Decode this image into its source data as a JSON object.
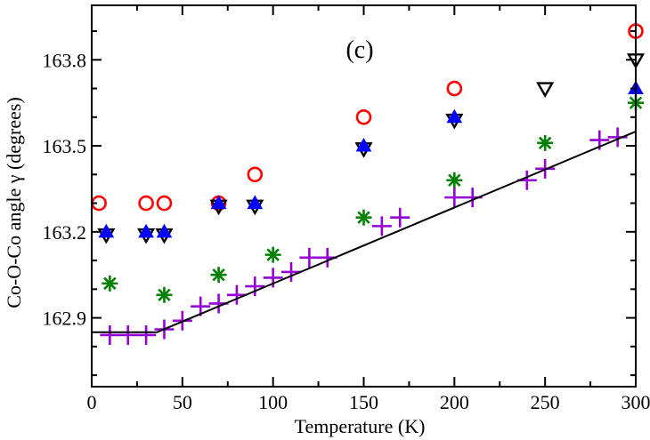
{
  "chart_data": {
    "type": "scatter",
    "title": "",
    "panel_label": "(c)",
    "xlabel": "Temperature (K)",
    "ylabel": "Co-O-Co angle γ (degrees)",
    "xlim": [
      0,
      300
    ],
    "ylim": [
      162.66,
      163.99
    ],
    "x_ticks": [
      0,
      50,
      100,
      150,
      200,
      250,
      300
    ],
    "y_ticks": [
      162.9,
      163.2,
      163.5,
      163.8
    ],
    "y_tick_labels": [
      "162.9",
      "163.2",
      "163.5",
      "163.8"
    ],
    "grid": false,
    "legend": "none",
    "series": [
      {
        "marker": "open-circle",
        "color": "#ff0000",
        "points": [
          [
            4,
            163.3
          ],
          [
            30,
            163.3
          ],
          [
            40,
            163.3
          ],
          [
            70,
            163.3
          ],
          [
            90,
            163.4
          ],
          [
            150,
            163.6
          ],
          [
            200,
            163.7
          ],
          [
            300,
            163.9
          ]
        ]
      },
      {
        "marker": "open-down-triangle",
        "color": "#000000",
        "points": [
          [
            8,
            163.19
          ],
          [
            30,
            163.19
          ],
          [
            40,
            163.19
          ],
          [
            70,
            163.29
          ],
          [
            90,
            163.29
          ],
          [
            150,
            163.49
          ],
          [
            200,
            163.59
          ],
          [
            250,
            163.7
          ],
          [
            300,
            163.8
          ]
        ]
      },
      {
        "marker": "filled-up-triangle",
        "color": "#0000ff",
        "points": [
          [
            8,
            163.2
          ],
          [
            30,
            163.2
          ],
          [
            40,
            163.2
          ],
          [
            70,
            163.3
          ],
          [
            90,
            163.3
          ],
          [
            150,
            163.5
          ],
          [
            200,
            163.6
          ],
          [
            300,
            163.7
          ]
        ]
      },
      {
        "marker": "asterisk",
        "color": "#008000",
        "points": [
          [
            10,
            163.02
          ],
          [
            40,
            162.98
          ],
          [
            70,
            163.05
          ],
          [
            100,
            163.12
          ],
          [
            150,
            163.25
          ],
          [
            200,
            163.38
          ],
          [
            250,
            163.51
          ],
          [
            300,
            163.65
          ]
        ]
      },
      {
        "marker": "plus",
        "color": "#9400d3",
        "points": [
          [
            10,
            162.84
          ],
          [
            20,
            162.84
          ],
          [
            30,
            162.84
          ],
          [
            40,
            162.86
          ],
          [
            50,
            162.89
          ],
          [
            60,
            162.94
          ],
          [
            70,
            162.95
          ],
          [
            80,
            162.98
          ],
          [
            90,
            163.01
          ],
          [
            100,
            163.04
          ],
          [
            110,
            163.06
          ],
          [
            120,
            163.11
          ],
          [
            130,
            163.11
          ],
          [
            160,
            163.22
          ],
          [
            170,
            163.25
          ],
          [
            200,
            163.32
          ],
          [
            210,
            163.32
          ],
          [
            240,
            163.38
          ],
          [
            250,
            163.42
          ],
          [
            280,
            163.52
          ],
          [
            290,
            163.53
          ]
        ]
      },
      {
        "marker": "none",
        "line": "solid",
        "color": "#000000",
        "points": [
          [
            0,
            162.85
          ],
          [
            36,
            162.85
          ],
          [
            300,
            163.55
          ]
        ]
      }
    ]
  }
}
